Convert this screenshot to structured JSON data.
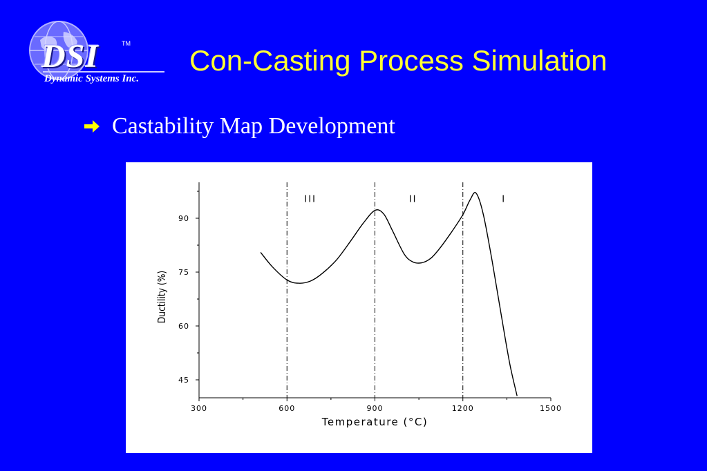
{
  "logo": {
    "mark": "DSI",
    "trademark": "TM",
    "subtitle": "Dynamic Systems Inc."
  },
  "slide": {
    "title": "Con-Casting Process Simulation",
    "bullet_icon": "right-arrow-icon",
    "bullet_text": "Castability Map Development"
  },
  "colors": {
    "background": "#0000ff",
    "title": "#ffff33",
    "bullet": "#ffffff",
    "arrow": "#ffff00",
    "chart_bg": "#ffffff",
    "curve": "#000000"
  },
  "chart_data": {
    "type": "line",
    "title": "",
    "xlabel": "Temperature (°C)",
    "ylabel": "Ductility (%)",
    "xlim": [
      300,
      1500
    ],
    "ylim": [
      40,
      100
    ],
    "xticks": [
      300,
      600,
      900,
      1200,
      1500
    ],
    "yticks": [
      45,
      60,
      75,
      90
    ],
    "grid": false,
    "series": [
      {
        "name": "",
        "x": [
          510,
          550,
          600,
          640,
          680,
          720,
          770,
          820,
          860,
          900,
          930,
          960,
          1000,
          1030,
          1060,
          1090,
          1120,
          1160,
          1200,
          1225,
          1245,
          1270,
          1300,
          1330,
          1360,
          1385
        ],
        "y": [
          80.5,
          76.5,
          72.8,
          71.9,
          72.5,
          74.6,
          78.5,
          84.0,
          88.6,
          92.2,
          91.2,
          86.5,
          80.0,
          77.8,
          77.6,
          78.8,
          81.5,
          86.0,
          91.0,
          95.2,
          97.0,
          91.0,
          78.0,
          63.5,
          49.5,
          40.5
        ]
      }
    ],
    "vlines": [
      600,
      900,
      1200
    ],
    "regions": [
      {
        "label": "III",
        "x": 680,
        "y": 94.5
      },
      {
        "label": "II",
        "x": 1030,
        "y": 94.5
      },
      {
        "label": "I",
        "x": 1340,
        "y": 94.5
      }
    ]
  }
}
